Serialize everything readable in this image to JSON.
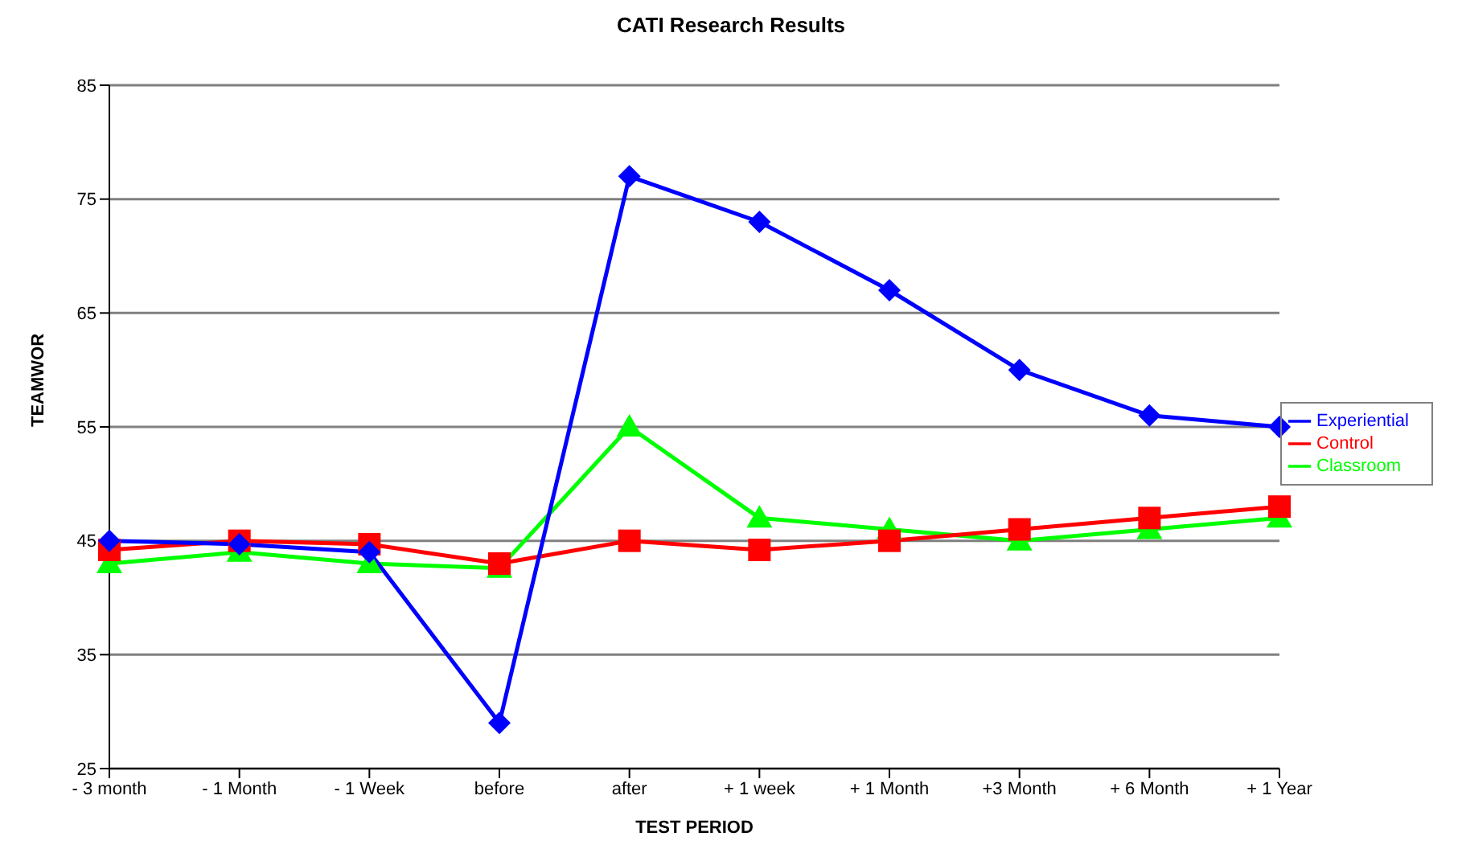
{
  "chart_data": {
    "type": "line",
    "title": "CATI Research Results",
    "xlabel": "TEST PERIOD",
    "ylabel": "TEAMWOR",
    "categories": [
      "- 3 month",
      "- 1 Month",
      "- 1 Week",
      "before",
      "after",
      "+ 1 week",
      "+ 1 Month",
      "+3 Month",
      "+ 6 Month",
      "+ 1 Year"
    ],
    "series": [
      {
        "name": "Experiential",
        "color": "#0000ff",
        "marker": "diamond",
        "values": [
          45,
          44.7,
          44,
          29,
          77,
          73,
          67,
          60,
          56,
          55
        ]
      },
      {
        "name": "Control",
        "color": "#ff0000",
        "marker": "square",
        "values": [
          44.2,
          45,
          44.7,
          43,
          45,
          44.2,
          45,
          46,
          47,
          48
        ]
      },
      {
        "name": "Classroom",
        "color": "#00ff00",
        "marker": "triangle",
        "values": [
          43,
          44,
          43,
          42.6,
          55,
          47,
          46,
          45,
          46,
          47
        ]
      }
    ],
    "ylim": [
      25,
      85
    ],
    "yticks": [
      25,
      35,
      45,
      55,
      65,
      75,
      85
    ],
    "grid": "y",
    "legend": "right"
  }
}
